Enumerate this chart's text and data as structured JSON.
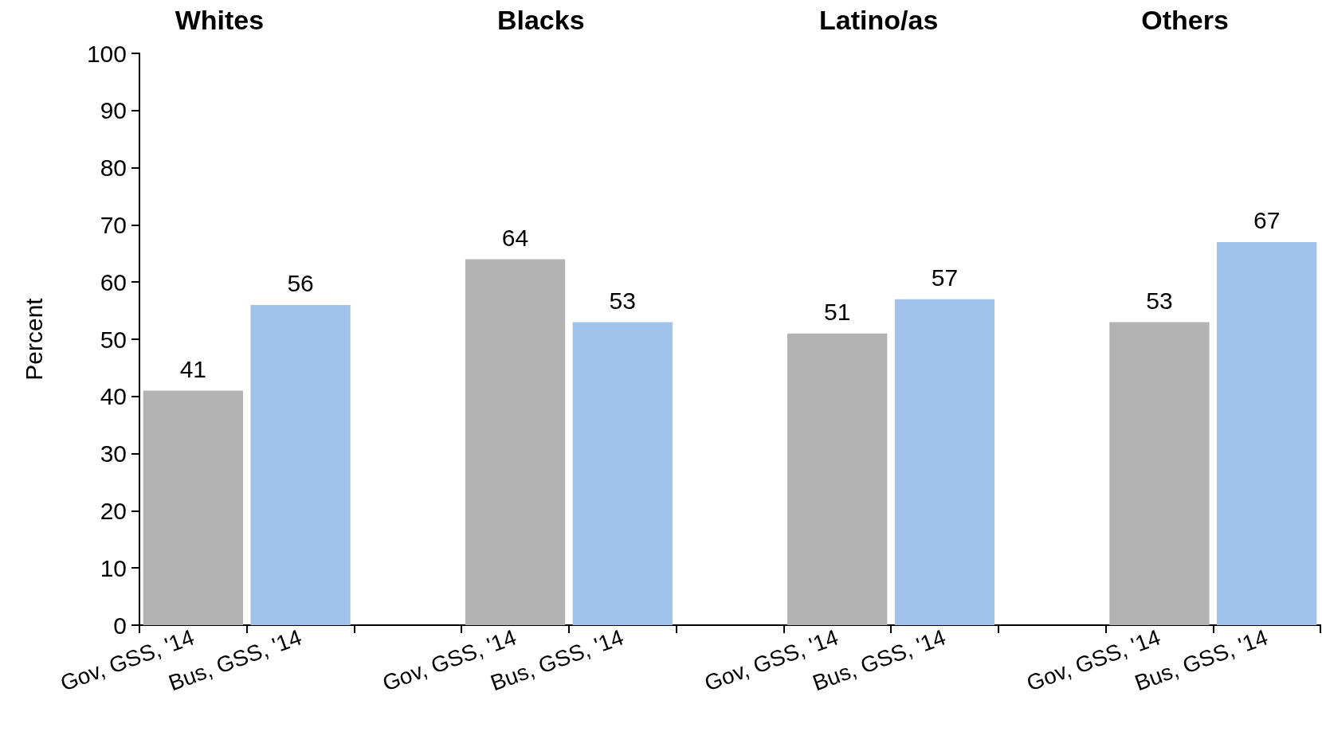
{
  "chart_data": {
    "type": "bar",
    "ylabel": "Percent",
    "categories": [
      "Gov, GSS, '14",
      "Bus, GSS, '14",
      null,
      "Gov, GSS, '14",
      "Bus, GSS, '14",
      null,
      "Gov, GSS, '14",
      "Bus, GSS, '14",
      null,
      "Gov, GSS, '14",
      "Bus, GSS, '14"
    ],
    "series": [
      {
        "color": "#b3b3b3",
        "values": [
          41,
          null,
          null,
          64,
          null,
          null,
          51,
          null,
          null,
          53,
          null
        ]
      },
      {
        "color": "#9fc3ea",
        "values": [
          null,
          56,
          null,
          null,
          53,
          null,
          null,
          57,
          null,
          null,
          67
        ]
      }
    ],
    "annotations": [
      "Whites",
      "Blacks",
      "Latino/as",
      "Others"
    ],
    "ylim": [
      0,
      100
    ],
    "yticks": [
      0,
      10,
      20,
      30,
      40,
      50,
      60,
      70,
      80,
      90,
      100
    ],
    "data_labels": true,
    "grid": false
  }
}
